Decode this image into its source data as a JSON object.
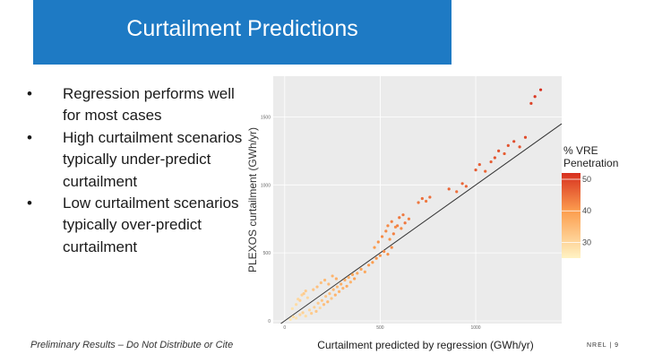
{
  "slide": {
    "title": "Curtailment Predictions",
    "bullets": [
      "Regression performs well for most cases",
      "High curtailment scenarios typically under-predict curtailment",
      "Low curtailment scenarios typically over-predict curtailment"
    ],
    "bullet_symbol": "•",
    "footer_note": "Preliminary Results – Do Not Distribute or Cite",
    "page_footer": "NREL | 9",
    "title_bg_color": "#1e7ac4"
  },
  "chart_data": {
    "type": "scatter",
    "xlabel": "Curtailment predicted by regression (GWh/yr)",
    "ylabel": "PLEXOS curtailment (GWh/yr)",
    "x_ticks": [
      0,
      500,
      1000
    ],
    "y_ticks": [
      0,
      500,
      1000,
      1500
    ],
    "x_tick_labels": [
      "0",
      "500",
      "1000"
    ],
    "y_tick_labels": [
      "0",
      "500",
      "1000",
      "1500"
    ],
    "xlim": [
      -60,
      1450
    ],
    "ylim": [
      -20,
      1800
    ],
    "grid": true,
    "fit_line": {
      "from": [
        -20,
        -20
      ],
      "to": [
        1450,
        1450
      ]
    },
    "color_legend": {
      "title": "% VRE Penetration",
      "ticks": [
        30,
        40,
        50
      ],
      "min": 25,
      "max": 52,
      "low_color": "#fff3c4",
      "high_color": "#d7301f"
    },
    "points": [
      [
        30,
        10,
        27
      ],
      [
        45,
        30,
        29
      ],
      [
        60,
        20,
        28
      ],
      [
        80,
        45,
        30
      ],
      [
        95,
        60,
        31
      ],
      [
        110,
        35,
        29
      ],
      [
        130,
        80,
        30
      ],
      [
        140,
        55,
        32
      ],
      [
        155,
        100,
        31
      ],
      [
        165,
        70,
        33
      ],
      [
        175,
        130,
        32
      ],
      [
        185,
        95,
        30
      ],
      [
        195,
        150,
        33
      ],
      [
        205,
        120,
        34
      ],
      [
        215,
        180,
        33
      ],
      [
        225,
        140,
        35
      ],
      [
        235,
        200,
        34
      ],
      [
        245,
        165,
        33
      ],
      [
        255,
        230,
        35
      ],
      [
        265,
        190,
        36
      ],
      [
        275,
        250,
        35
      ],
      [
        285,
        215,
        36
      ],
      [
        295,
        270,
        37
      ],
      [
        305,
        240,
        36
      ],
      [
        315,
        300,
        37
      ],
      [
        325,
        255,
        38
      ],
      [
        335,
        320,
        37
      ],
      [
        345,
        285,
        36
      ],
      [
        355,
        340,
        38
      ],
      [
        365,
        310,
        39
      ],
      [
        80,
        150,
        31
      ],
      [
        100,
        200,
        32
      ],
      [
        120,
        170,
        30
      ],
      [
        150,
        230,
        33
      ],
      [
        170,
        250,
        34
      ],
      [
        190,
        280,
        34
      ],
      [
        210,
        300,
        35
      ],
      [
        230,
        270,
        35
      ],
      [
        250,
        330,
        36
      ],
      [
        270,
        310,
        37
      ],
      [
        40,
        90,
        28
      ],
      [
        60,
        120,
        29
      ],
      [
        70,
        160,
        30
      ],
      [
        90,
        190,
        31
      ],
      [
        110,
        220,
        32
      ],
      [
        380,
        350,
        38
      ],
      [
        400,
        380,
        39
      ],
      [
        420,
        360,
        38
      ],
      [
        440,
        410,
        40
      ],
      [
        460,
        430,
        40
      ],
      [
        480,
        460,
        41
      ],
      [
        500,
        480,
        41
      ],
      [
        520,
        510,
        42
      ],
      [
        540,
        490,
        41
      ],
      [
        560,
        540,
        42
      ],
      [
        470,
        540,
        40
      ],
      [
        490,
        580,
        41
      ],
      [
        510,
        620,
        42
      ],
      [
        530,
        660,
        42
      ],
      [
        550,
        600,
        41
      ],
      [
        570,
        640,
        43
      ],
      [
        590,
        700,
        43
      ],
      [
        610,
        680,
        42
      ],
      [
        630,
        720,
        44
      ],
      [
        650,
        750,
        43
      ],
      [
        540,
        700,
        42
      ],
      [
        560,
        730,
        43
      ],
      [
        580,
        690,
        42
      ],
      [
        600,
        760,
        44
      ],
      [
        620,
        780,
        44
      ],
      [
        700,
        870,
        44
      ],
      [
        720,
        900,
        45
      ],
      [
        740,
        880,
        44
      ],
      [
        760,
        910,
        45
      ],
      [
        860,
        970,
        46
      ],
      [
        900,
        950,
        45
      ],
      [
        930,
        1010,
        46
      ],
      [
        950,
        990,
        46
      ],
      [
        1000,
        1110,
        47
      ],
      [
        1020,
        1150,
        47
      ],
      [
        1050,
        1100,
        46
      ],
      [
        1080,
        1170,
        47
      ],
      [
        1100,
        1200,
        48
      ],
      [
        1120,
        1250,
        48
      ],
      [
        1150,
        1230,
        47
      ],
      [
        1170,
        1290,
        48
      ],
      [
        1200,
        1320,
        49
      ],
      [
        1230,
        1280,
        48
      ],
      [
        1260,
        1350,
        49
      ],
      [
        1290,
        1600,
        50
      ],
      [
        1310,
        1650,
        51
      ],
      [
        1340,
        1700,
        52
      ]
    ]
  }
}
